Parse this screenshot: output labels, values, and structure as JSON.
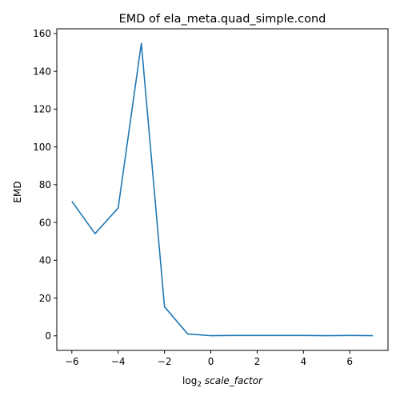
{
  "chart_data": {
    "type": "line",
    "title": "EMD of ela_meta.quad_simple.cond",
    "xlabel": {
      "prefix": "log",
      "subscript": "2",
      "italic": "scale_factor"
    },
    "ylabel": "EMD",
    "xlim": [
      -6.65,
      7.65
    ],
    "ylim": [
      -7.7,
      162.5
    ],
    "xticks": [
      -6,
      -4,
      -2,
      0,
      2,
      4,
      6
    ],
    "xtick_labels": [
      "−6",
      "−4",
      "−2",
      "0",
      "2",
      "4",
      "6"
    ],
    "yticks": [
      0,
      20,
      40,
      60,
      80,
      100,
      120,
      140,
      160
    ],
    "ytick_labels": [
      "0",
      "20",
      "40",
      "60",
      "80",
      "100",
      "120",
      "140",
      "160"
    ],
    "grid": false,
    "legend": "none",
    "series": [
      {
        "color": "#1f77b4",
        "x": [
          -6,
          -5,
          -4,
          -3,
          -2,
          -1,
          0,
          1,
          2,
          3,
          4,
          5,
          6,
          7
        ],
        "y": [
          71.2,
          54.1,
          67.7,
          154.8,
          15.4,
          1.0,
          0.1,
          0.2,
          0.2,
          0.2,
          0.2,
          0.1,
          0.2,
          0.1
        ]
      }
    ]
  }
}
